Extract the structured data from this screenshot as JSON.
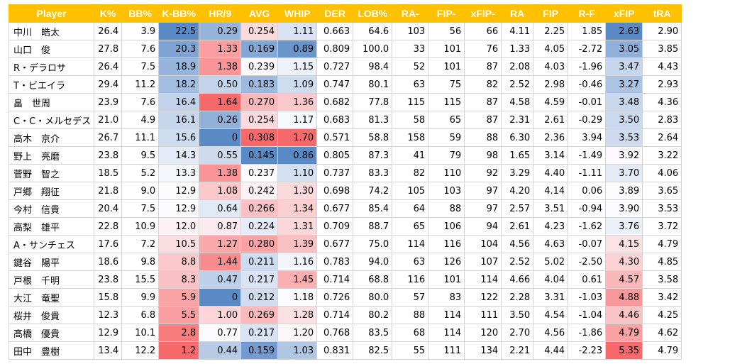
{
  "table": {
    "columns": [
      "Player",
      "K%",
      "BB%",
      "K-BB%",
      "HR/9",
      "AVG",
      "WHIP",
      "DER",
      "LOB%",
      "RA-",
      "FIP-",
      "xFIP-",
      "RA",
      "FIP",
      "R-F",
      "xFIP",
      "tRA"
    ],
    "rows": [
      [
        "中川　皓太",
        "26.4",
        "3.9",
        "22.5",
        "0.29",
        "0.254",
        "1.11",
        "0.663",
        "64.6",
        "103",
        "56",
        "66",
        "4.11",
        "2.25",
        "1.85",
        "2.63",
        "2.90"
      ],
      [
        "山口　俊",
        "27.8",
        "7.6",
        "20.3",
        "1.33",
        "0.169",
        "0.89",
        "0.809",
        "100.0",
        "33",
        "101",
        "76",
        "1.33",
        "4.05",
        "-2.72",
        "3.05",
        "3.85"
      ],
      [
        "R・デラロサ",
        "26.4",
        "7.5",
        "18.9",
        "1.38",
        "0.239",
        "1.15",
        "0.727",
        "98.4",
        "52",
        "101",
        "87",
        "2.08",
        "4.03",
        "-1.96",
        "3.47",
        "4.43"
      ],
      [
        "T・ビエイラ",
        "29.4",
        "11.2",
        "18.2",
        "0.50",
        "0.183",
        "1.09",
        "0.747",
        "80.1",
        "63",
        "75",
        "82",
        "2.52",
        "2.98",
        "-0.46",
        "3.27",
        "2.93"
      ],
      [
        "畠　世周",
        "23.9",
        "7.6",
        "16.4",
        "1.64",
        "0.270",
        "1.36",
        "0.682",
        "77.8",
        "115",
        "115",
        "87",
        "4.58",
        "4.59",
        "-0.01",
        "3.48",
        "4.36"
      ],
      [
        "C・C・メルセデス",
        "21.0",
        "4.9",
        "16.1",
        "0.26",
        "0.254",
        "1.17",
        "0.683",
        "81.3",
        "58",
        "65",
        "87",
        "2.31",
        "2.61",
        "-0.29",
        "3.50",
        "2.83"
      ],
      [
        "高木　京介",
        "26.7",
        "11.1",
        "15.6",
        "0",
        "0.308",
        "1.70",
        "0.571",
        "58.8",
        "158",
        "59",
        "88",
        "6.30",
        "2.36",
        "3.94",
        "3.53",
        "2.64"
      ],
      [
        "野上　亮磨",
        "23.8",
        "9.5",
        "14.3",
        "0.55",
        "0.145",
        "0.86",
        "0.805",
        "87.3",
        "41",
        "79",
        "98",
        "1.65",
        "3.14",
        "-1.49",
        "3.92",
        "3.22"
      ],
      [
        "菅野　智之",
        "18.5",
        "5.2",
        "13.3",
        "1.38",
        "0.237",
        "1.10",
        "0.737",
        "83.3",
        "82",
        "110",
        "92",
        "3.29",
        "4.40",
        "-1.11",
        "3.70",
        "4.06"
      ],
      [
        "戸郷　翔征",
        "21.8",
        "9.0",
        "12.9",
        "1.08",
        "0.242",
        "1.30",
        "0.698",
        "74.2",
        "105",
        "103",
        "97",
        "4.20",
        "4.14",
        "0.06",
        "3.89",
        "3.65"
      ],
      [
        "今村　信貴",
        "20.4",
        "7.5",
        "12.9",
        "0.64",
        "0.266",
        "1.34",
        "0.677",
        "85.4",
        "64",
        "88",
        "97",
        "2.57",
        "3.51",
        "-0.94",
        "3.90",
        "3.53"
      ],
      [
        "高梨　雄平",
        "22.8",
        "10.9",
        "12.0",
        "0.87",
        "0.224",
        "1.31",
        "0.709",
        "88.7",
        "65",
        "106",
        "94",
        "2.61",
        "4.23",
        "-1.62",
        "3.76",
        "3.72"
      ],
      [
        "A・サンチェス",
        "17.6",
        "7.2",
        "10.5",
        "1.27",
        "0.280",
        "1.39",
        "0.677",
        "75.0",
        "114",
        "116",
        "104",
        "4.56",
        "4.63",
        "-0.07",
        "4.15",
        "4.79"
      ],
      [
        "鍵谷　陽平",
        "18.6",
        "9.8",
        "8.8",
        "1.44",
        "0.211",
        "1.16",
        "0.783",
        "94.0",
        "63",
        "126",
        "107",
        "2.52",
        "5.02",
        "-2.50",
        "4.30",
        "4.85"
      ],
      [
        "戸根　千明",
        "23.8",
        "15.5",
        "8.3",
        "0.47",
        "0.217",
        "1.45",
        "0.714",
        "68.8",
        "116",
        "101",
        "114",
        "4.66",
        "4.04",
        "0.61",
        "4.57",
        "3.58"
      ],
      [
        "大江　竜聖",
        "15.8",
        "9.9",
        "5.9",
        "0",
        "0.212",
        "1.18",
        "0.726",
        "80.0",
        "57",
        "83",
        "122",
        "2.28",
        "3.31",
        "-1.03",
        "4.88",
        "3.42"
      ],
      [
        "桜井　俊貴",
        "12.3",
        "6.8",
        "5.5",
        "1.00",
        "0.269",
        "1.28",
        "0.714",
        "80.2",
        "88",
        "114",
        "111",
        "3.50",
        "4.54",
        "-1.04",
        "4.46",
        "4.25"
      ],
      [
        "髙橋　優貴",
        "12.9",
        "10.1",
        "2.8",
        "0.77",
        "0.217",
        "1.20",
        "0.768",
        "83.5",
        "68",
        "114",
        "120",
        "2.70",
        "4.56",
        "-1.86",
        "4.79",
        "4.62"
      ],
      [
        "田中　豊樹",
        "13.4",
        "12.2",
        "1.2",
        "0.44",
        "0.159",
        "1.03",
        "0.831",
        "82.5",
        "55",
        "111",
        "134",
        "2.21",
        "4.44",
        "-2.23",
        "5.35",
        "4.79"
      ]
    ]
  },
  "colors": {
    "header_bg": "#ffc000",
    "header_text": "#ffffff",
    "grid": "#d4d4d4",
    "scale_blue": "#5a8ac6",
    "scale_white": "#fcfcff",
    "scale_red": "#f8696b"
  },
  "color_scales": [
    {
      "column": "K-BB%",
      "high": "blue"
    },
    {
      "column": "HR/9",
      "high": "red"
    },
    {
      "column": "AVG",
      "high": "red"
    },
    {
      "column": "WHIP",
      "high": "red"
    },
    {
      "column": "xFIP",
      "high": "red"
    }
  ]
}
